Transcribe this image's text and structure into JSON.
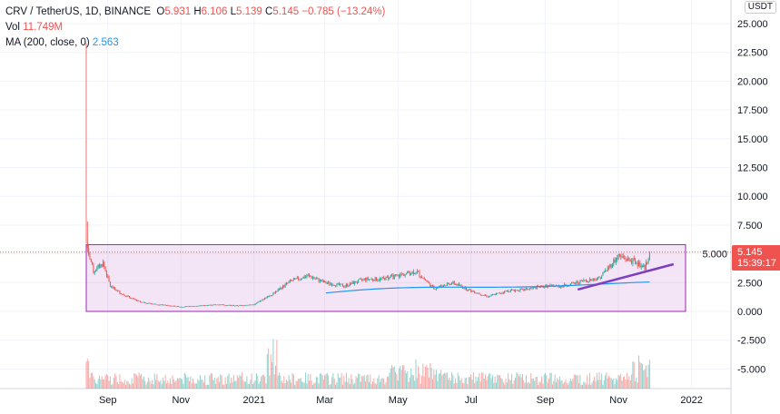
{
  "legend": {
    "symbol": "CRV / TetherUS, 1D, BINANCE",
    "o_label": "O",
    "open": "5.931",
    "h_label": "H",
    "high": "6.106",
    "l_label": "L",
    "low": "5.139",
    "c_label": "C",
    "close": "5.145",
    "change": "−0.785 (−13.24%)",
    "vol_label": "Vol",
    "vol": "11.749M",
    "ma_label": "MA (200, close, 0)",
    "ma": "2.563"
  },
  "currency": "USDT",
  "last_price": "5.145",
  "countdown": "15:39:17",
  "colors": {
    "up": "#26a69a",
    "down": "#ef5350",
    "ma": "#2196f3",
    "box": "#9c27b0",
    "trend": "#7b3fbf"
  },
  "chart_data": {
    "type": "candlestick",
    "title": "CRV / TetherUS, 1D, BINANCE",
    "y_ticks": [
      "25.000",
      "22.500",
      "20.000",
      "17.500",
      "15.000",
      "12.500",
      "10.000",
      "7.500",
      "5.000",
      "2.500",
      "0.000",
      "-2.500",
      "-5.000"
    ],
    "ylim": [
      -7,
      26
    ],
    "x_ticks": [
      {
        "label": "Sep",
        "day": 18
      },
      {
        "label": "Nov",
        "day": 79
      },
      {
        "label": "2021",
        "day": 140
      },
      {
        "label": "Mar",
        "day": 199
      },
      {
        "label": "May",
        "day": 260
      },
      {
        "label": "Jul",
        "day": 321
      },
      {
        "label": "Sep",
        "day": 383
      },
      {
        "label": "Nov",
        "day": 444
      },
      {
        "label": "2022",
        "day": 505
      }
    ],
    "close_keypoints_day_price": [
      [
        0,
        6
      ],
      [
        1,
        5.5
      ],
      [
        6,
        3.5
      ],
      [
        14,
        4.2
      ],
      [
        20,
        2.2
      ],
      [
        30,
        1.5
      ],
      [
        45,
        0.8
      ],
      [
        60,
        0.6
      ],
      [
        79,
        0.4
      ],
      [
        95,
        0.5
      ],
      [
        110,
        0.6
      ],
      [
        125,
        0.5
      ],
      [
        140,
        0.6
      ],
      [
        155,
        1.5
      ],
      [
        170,
        2.6
      ],
      [
        185,
        3.1
      ],
      [
        199,
        2.5
      ],
      [
        215,
        2.2
      ],
      [
        232,
        2.8
      ],
      [
        246,
        2.8
      ],
      [
        260,
        3.1
      ],
      [
        275,
        3.5
      ],
      [
        290,
        2.0
      ],
      [
        305,
        2.5
      ],
      [
        321,
        1.8
      ],
      [
        335,
        1.3
      ],
      [
        352,
        1.8
      ],
      [
        366,
        1.9
      ],
      [
        383,
        2.2
      ],
      [
        397,
        2.2
      ],
      [
        413,
        2.6
      ],
      [
        428,
        2.9
      ],
      [
        444,
        4.8
      ],
      [
        458,
        4.3
      ],
      [
        466,
        3.8
      ],
      [
        470,
        5.1
      ]
    ],
    "first_day_high": 23.3,
    "ma200": {
      "start_day": 200,
      "end_day": 470,
      "start": 1.6,
      "end": 2.56
    },
    "range_box": {
      "top": 5.8,
      "bottom": 0.0,
      "start_day": 0,
      "end_day": 500
    },
    "trendline": {
      "start_day": 410,
      "start": 1.9,
      "end_day": 490,
      "end": 4.1
    },
    "last_price": 5.145
  }
}
